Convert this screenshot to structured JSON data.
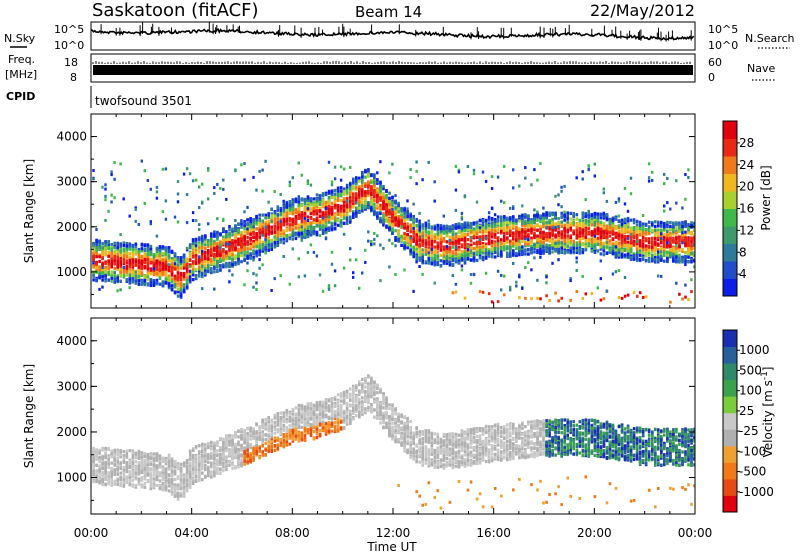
{
  "header": {
    "title": "Saskatoon (fitACF)",
    "beam": "Beam 14",
    "date": "22/May/2012"
  },
  "noise_panel": {
    "left_label": "N.Sky",
    "right_label": "N.Search",
    "left_ticks": [
      "10^5",
      "10^0"
    ],
    "right_ticks": [
      "10^5",
      "10^0"
    ]
  },
  "freq_panel": {
    "left_label_line1": "Freq.",
    "left_label_line2": "[MHz]",
    "right_label": "Nave",
    "left_ticks": [
      "18",
      "8"
    ],
    "right_ticks": [
      "60",
      "0"
    ]
  },
  "cpid_panel": {
    "label": "CPID",
    "program": "twofsound 3501"
  },
  "colors": {
    "power_scale": [
      "#0a1ee6",
      "#1f4ec8",
      "#2e7a9a",
      "#3d9a6a",
      "#3fb94a",
      "#a7d12e",
      "#f0b81e",
      "#f07a1a",
      "#e82a14",
      "#e00010"
    ],
    "velocity_scale": [
      "#1a2fb0",
      "#26609a",
      "#2f8a6a",
      "#3aa24a",
      "#7acc3a",
      "#c8c8c8",
      "#b0b0b0",
      "#f0a030",
      "#f07a18",
      "#e84a14",
      "#e00010"
    ]
  },
  "chart_data": [
    {
      "type": "heatmap",
      "panel": "power",
      "ylabel": "Slant Range [km]",
      "y_ticks": [
        "1000",
        "2000",
        "3000",
        "4000"
      ],
      "ylim": [
        200,
        4500
      ],
      "colorbar_label": "Power [dB]",
      "colorbar_ticks": [
        "4",
        "8",
        "12",
        "16",
        "20",
        "24",
        "28"
      ],
      "bands": [
        {
          "t": [
            0,
            2,
            3,
            3.5,
            4,
            5,
            6,
            7,
            8,
            9,
            10,
            11,
            12,
            13,
            14,
            16,
            18,
            20,
            22,
            24
          ],
          "r": [
            1300,
            1200,
            1150,
            900,
            1300,
            1500,
            1700,
            1950,
            2200,
            2300,
            2500,
            2900,
            2200,
            1700,
            1600,
            1800,
            1900,
            1900,
            1700,
            1700
          ]
        }
      ]
    },
    {
      "type": "heatmap",
      "panel": "velocity",
      "ylabel": "Slant Range [km]",
      "y_ticks": [
        "1000",
        "2000",
        "3000",
        "4000"
      ],
      "ylim": [
        200,
        4500
      ],
      "xlabel": "Time UT",
      "x_ticks": [
        "00:00",
        "04:00",
        "08:00",
        "12:00",
        "16:00",
        "20:00",
        "00:00"
      ],
      "xlim": [
        0,
        24
      ],
      "colorbar_label": "Velocity [m s-1]",
      "colorbar_ticks": [
        "1000",
        "500",
        "100",
        "25",
        "-25",
        "-100",
        "-500",
        "-1000"
      ]
    }
  ]
}
